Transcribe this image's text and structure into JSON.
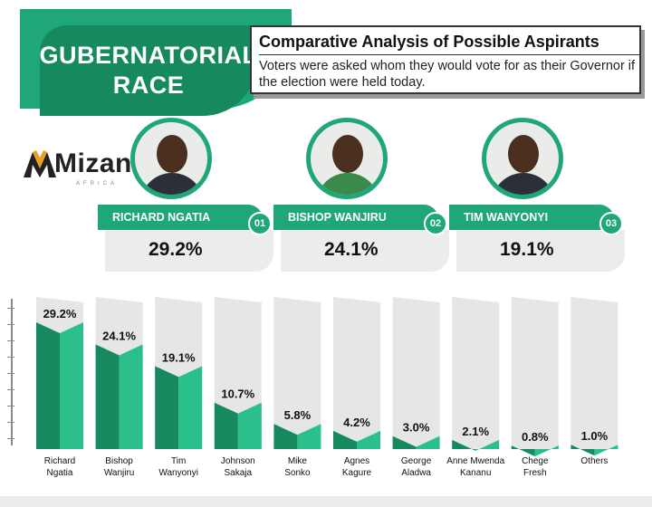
{
  "header": {
    "banner_line1": "GUBERNATORIAL",
    "banner_line2": "RACE",
    "title": "Comparative Analysis of Possible Aspirants",
    "subtitle": "Voters were asked whom they would vote for as their Governor if the election were held today."
  },
  "logo": {
    "word": "Mizani",
    "sub": "AFRICA"
  },
  "top_candidates": [
    {
      "name": "RICHARD NGATIA",
      "rank": "01",
      "percent": "29.2%"
    },
    {
      "name": "BISHOP WANJIRU",
      "rank": "02",
      "percent": "24.1%"
    },
    {
      "name": "TIM WANYONYI",
      "rank": "03",
      "percent": "19.1%"
    }
  ],
  "colors": {
    "accent": "#1fa77a",
    "accent_dark": "#16895f",
    "bar_top": "#2bbf8c",
    "backdrop": "#e6e6e6"
  },
  "chart_data": {
    "type": "bar",
    "title": "",
    "xlabel": "",
    "ylabel": "",
    "ylim": [
      0,
      32
    ],
    "grid": false,
    "categories": [
      [
        "Richard",
        "Ngatia"
      ],
      [
        "Bishop",
        "Wanjiru"
      ],
      [
        "Tim",
        "Wanyonyi"
      ],
      [
        "Johnson",
        "Sakaja"
      ],
      [
        "Mike",
        "Sonko"
      ],
      [
        "Agnes",
        "Kagure"
      ],
      [
        "George",
        "Aladwa"
      ],
      [
        "Anne Mwenda",
        "Kananu"
      ],
      [
        "Chege",
        "Fresh"
      ],
      [
        "Others"
      ]
    ],
    "values": [
      29.2,
      24.1,
      19.1,
      10.7,
      5.8,
      4.2,
      3.0,
      2.1,
      0.8,
      1.0
    ],
    "value_labels": [
      "29.2%",
      "24.1%",
      "19.1%",
      "10.7%",
      "5.8%",
      "4.2%",
      "3.0%",
      "2.1%",
      "0.8%",
      "1.0%"
    ]
  }
}
